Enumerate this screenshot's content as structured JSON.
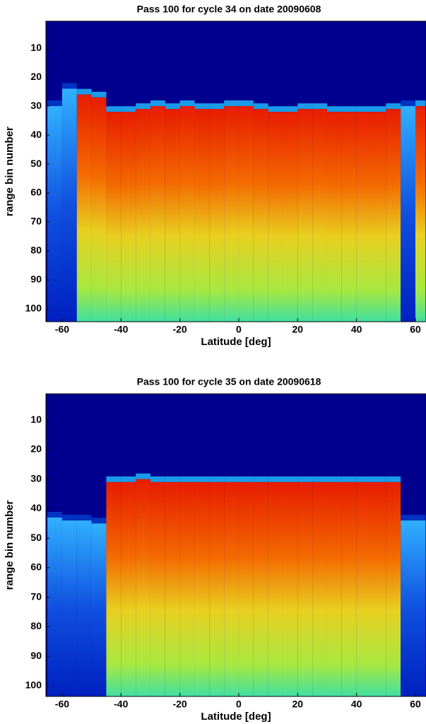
{
  "chart_data": [
    {
      "type": "heatmap",
      "title": "Pass 100 for cycle 34 on date 20090608",
      "xlabel": "Latitude [deg]",
      "ylabel": "range bin number",
      "x": [
        -65,
        -60,
        -55,
        -50,
        -45,
        -40,
        -35,
        -30,
        -25,
        -20,
        -15,
        -10,
        -5,
        0,
        5,
        10,
        15,
        20,
        25,
        30,
        35,
        40,
        45,
        50,
        55,
        60
      ],
      "values": [
        30,
        24,
        26,
        27,
        32,
        32,
        31,
        30,
        31,
        30,
        31,
        31,
        30,
        30,
        31,
        32,
        32,
        31,
        31,
        32,
        32,
        32,
        32,
        31,
        30,
        30
      ],
      "intensity": [
        0.3,
        0.1,
        1,
        1,
        1,
        1,
        1,
        1,
        1,
        1,
        1,
        1,
        1,
        1,
        1,
        1,
        1,
        1,
        1,
        1,
        1,
        1,
        1,
        1,
        0.1,
        0.8
      ],
      "xlim": [
        -65.5,
        63.6
      ],
      "ylim": [
        0.7,
        104.4
      ],
      "yreverse": true,
      "xticks": [
        -60,
        -40,
        -20,
        0,
        20,
        40,
        60
      ],
      "yticks": [
        10,
        20,
        30,
        40,
        50,
        60,
        70,
        80,
        90,
        100
      ],
      "background": "#00008f"
    },
    {
      "type": "heatmap",
      "title": "Pass 100 for cycle 35 on date 20090618",
      "xlabel": "Latitude [deg]",
      "ylabel": "range bin number",
      "x": [
        -65,
        -60,
        -55,
        -50,
        -45,
        -40,
        -35,
        -30,
        -25,
        -20,
        -15,
        -10,
        -5,
        0,
        5,
        10,
        15,
        20,
        25,
        30,
        35,
        40,
        45,
        50,
        55,
        60
      ],
      "values": [
        43,
        44,
        44,
        45,
        31,
        31,
        30,
        31,
        31,
        31,
        31,
        31,
        31,
        31,
        31,
        31,
        31,
        31,
        31,
        31,
        31,
        31,
        31,
        31,
        44,
        44
      ],
      "intensity": [
        0.3,
        0.3,
        0.3,
        0.3,
        1,
        1,
        1,
        1,
        1,
        1,
        1,
        1,
        1,
        1,
        1,
        1,
        1,
        1,
        1,
        1,
        1,
        1,
        1,
        1,
        0.1,
        0.2
      ],
      "xlim": [
        -65.5,
        63.6
      ],
      "ylim": [
        1.1,
        103.6
      ],
      "yreverse": true,
      "xticks": [
        -60,
        -40,
        -20,
        0,
        20,
        40,
        60
      ],
      "yticks": [
        10,
        20,
        30,
        40,
        50,
        60,
        70,
        80,
        90,
        100
      ],
      "background": "#00008f"
    }
  ]
}
